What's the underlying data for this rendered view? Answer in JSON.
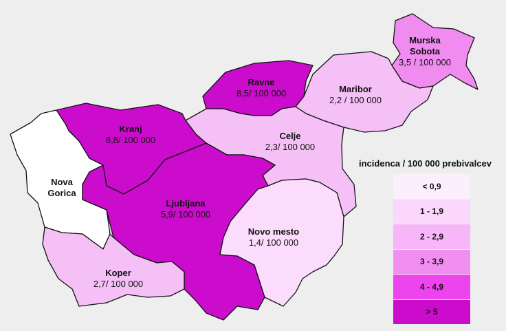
{
  "regions": [
    {
      "id": "murska-sobota",
      "name_lines": [
        "Murska",
        "Sobota"
      ],
      "value": "3,5 / 100 000",
      "color": "#f08cf0"
    },
    {
      "id": "maribor",
      "name_lines": [
        "Maribor"
      ],
      "value": "2,2 / 100 000",
      "color": "#f5c0f5"
    },
    {
      "id": "ravne",
      "name_lines": [
        "Ravne"
      ],
      "value": "8,5/ 100 000",
      "color": "#cc0ccc"
    },
    {
      "id": "celje",
      "name_lines": [
        "Celje"
      ],
      "value": "2,3/ 100 000",
      "color": "#f5c0f5"
    },
    {
      "id": "kranj",
      "name_lines": [
        "Kranj"
      ],
      "value": "8,8/ 100 000",
      "color": "#cc0ccc"
    },
    {
      "id": "nova-gorica",
      "name_lines": [
        "Nova",
        "Gorica"
      ],
      "value": "",
      "color": "#ffffff"
    },
    {
      "id": "ljubljana",
      "name_lines": [
        "Ljubljana"
      ],
      "value": "5,9/ 100 000",
      "color": "#cc0ccc"
    },
    {
      "id": "novo-mesto",
      "name_lines": [
        "Novo mesto"
      ],
      "value": "1,4/ 100 000",
      "color": "#fcdcfc"
    },
    {
      "id": "koper",
      "name_lines": [
        "Koper"
      ],
      "value": "2,7/ 100 000",
      "color": "#f5c0f5"
    }
  ],
  "legend": {
    "title": "incidenca / 100 000 prebivalcev",
    "items": [
      {
        "label": "< 0,9",
        "color": "#fdeefd"
      },
      {
        "label": "1 - 1,9",
        "color": "#fcd7fc"
      },
      {
        "label": "2 - 2,9",
        "color": "#f7b6f7"
      },
      {
        "label": "3 - 3,9",
        "color": "#f28ef2"
      },
      {
        "label": "4 - 4,9",
        "color": "#ee44ee"
      },
      {
        "label": "> 5",
        "color": "#cc0ccc"
      }
    ]
  }
}
